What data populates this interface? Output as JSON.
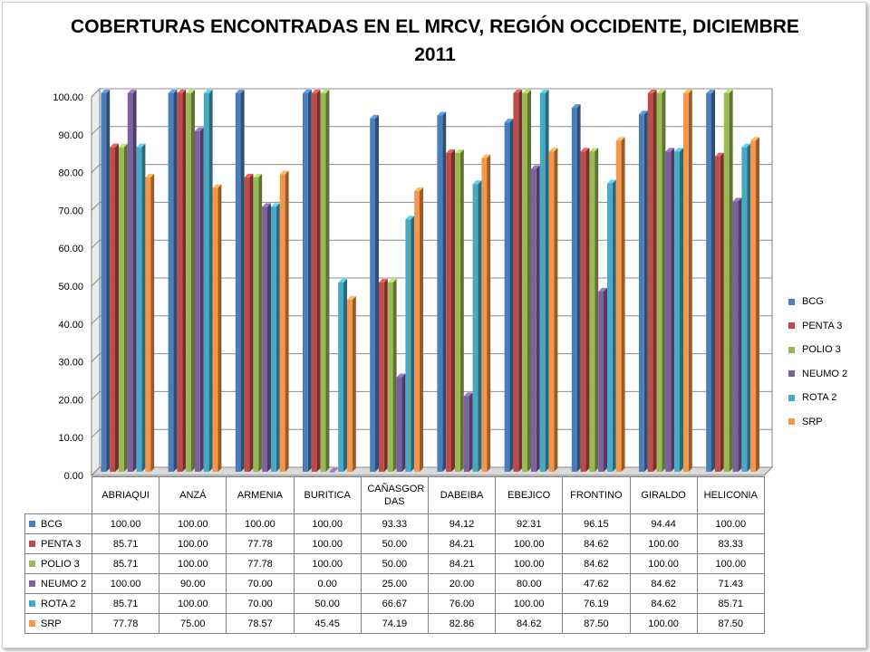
{
  "chart_data": {
    "type": "bar",
    "title": "COBERTURAS ENCONTRADAS EN EL MRCV, REGIÓN OCCIDENTE, DICIEMBRE 2011",
    "categories": [
      "ABRIAQUI",
      "ANZÁ",
      "ARMENIA",
      "BURITICA",
      "CAÑASGOR DAS",
      "DABEIBA",
      "EBEJICO",
      "FRONTINO",
      "GIRALDO",
      "HELICONIA"
    ],
    "series": [
      {
        "name": "BCG",
        "color": "#4a7ebb",
        "values": [
          100.0,
          100.0,
          100.0,
          100.0,
          93.33,
          94.12,
          92.31,
          96.15,
          94.44,
          100.0
        ]
      },
      {
        "name": "PENTA 3",
        "color": "#be4b48",
        "values": [
          85.71,
          100.0,
          77.78,
          100.0,
          50.0,
          84.21,
          100.0,
          84.62,
          100.0,
          83.33
        ]
      },
      {
        "name": "POLIO 3",
        "color": "#98b954",
        "values": [
          85.71,
          100.0,
          77.78,
          100.0,
          50.0,
          84.21,
          100.0,
          84.62,
          100.0,
          100.0
        ]
      },
      {
        "name": "NEUMO 2",
        "color": "#7d60a0",
        "values": [
          100.0,
          90.0,
          70.0,
          0.0,
          25.0,
          20.0,
          80.0,
          47.62,
          84.62,
          71.43
        ]
      },
      {
        "name": "ROTA 2",
        "color": "#46aac5",
        "values": [
          85.71,
          100.0,
          70.0,
          50.0,
          66.67,
          76.0,
          100.0,
          76.19,
          84.62,
          85.71
        ]
      },
      {
        "name": "SRP",
        "color": "#f79646",
        "values": [
          77.78,
          75.0,
          78.57,
          45.45,
          74.19,
          82.86,
          84.62,
          87.5,
          100.0,
          87.5
        ]
      }
    ],
    "ylim": [
      0,
      100
    ],
    "yticks": [
      "0.00",
      "10.00",
      "20.00",
      "30.00",
      "40.00",
      "50.00",
      "60.00",
      "70.00",
      "80.00",
      "90.00",
      "100.00"
    ],
    "grid": true,
    "legend_position": "right",
    "data_table": true
  }
}
